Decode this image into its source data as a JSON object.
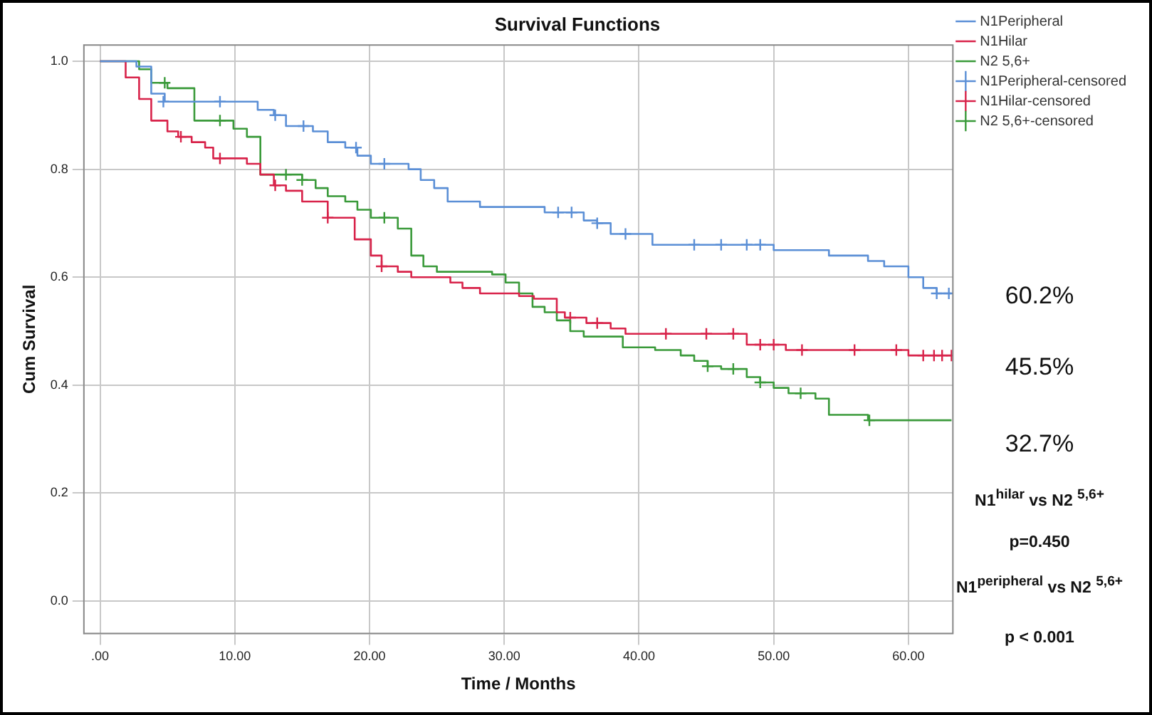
{
  "chart_data": {
    "type": "step",
    "title": "Survival Functions",
    "xlabel": "Time / Months",
    "ylabel": "Cum Survival",
    "xlim": [
      -1.2,
      63.3
    ],
    "ylim": [
      -0.06,
      1.03
    ],
    "xticks": [
      {
        "value": 0,
        "label": ".00"
      },
      {
        "value": 10,
        "label": "10.00"
      },
      {
        "value": 20,
        "label": "20.00"
      },
      {
        "value": 30,
        "label": "30.00"
      },
      {
        "value": 40,
        "label": "40.00"
      },
      {
        "value": 50,
        "label": "50.00"
      },
      {
        "value": 60,
        "label": "60.00"
      }
    ],
    "yticks": [
      {
        "value": 0,
        "label": "0.0"
      },
      {
        "value": 0.2,
        "label": "0.2"
      },
      {
        "value": 0.4,
        "label": "0.4"
      },
      {
        "value": 0.6,
        "label": "0.6"
      },
      {
        "value": 0.8,
        "label": "0.8"
      },
      {
        "value": 1,
        "label": "1.0"
      }
    ],
    "grid": true,
    "legend": "top right",
    "series": [
      {
        "name": "N1Peripheral",
        "type": "step",
        "color": "#5b8fd6",
        "x": [
          0,
          2.7,
          3.8,
          4.8,
          11.7,
          12.9,
          13.8,
          15.8,
          16.9,
          18.2,
          19.1,
          20.1,
          22.9,
          23.8,
          24.8,
          25.8,
          28.2,
          33.0,
          35.9,
          36.9,
          37.9,
          41.0,
          50.0,
          54.1,
          57.0,
          58.2,
          60.0,
          61.1,
          62.1,
          63.2
        ],
        "values": [
          1,
          0.99,
          0.94,
          0.925,
          0.91,
          0.9,
          0.88,
          0.87,
          0.85,
          0.84,
          0.825,
          0.81,
          0.8,
          0.78,
          0.765,
          0.74,
          0.73,
          0.72,
          0.705,
          0.7,
          0.68,
          0.66,
          0.65,
          0.64,
          0.63,
          0.62,
          0.6,
          0.58,
          0.57,
          0.57
        ]
      },
      {
        "name": "N1Hilar",
        "type": "step",
        "color": "#d8234a",
        "x": [
          0,
          1.9,
          2.9,
          3.8,
          5.0,
          5.8,
          6.8,
          7.8,
          8.4,
          10.9,
          11.9,
          12.9,
          13.8,
          15.0,
          16.9,
          18.9,
          20.1,
          20.9,
          22.1,
          23.1,
          26.0,
          26.9,
          28.2,
          31.1,
          32.2,
          33.9,
          34.5,
          36.1,
          37.9,
          39.0,
          48.0,
          50.9,
          60.0,
          63.2
        ],
        "values": [
          1,
          0.97,
          0.93,
          0.89,
          0.87,
          0.86,
          0.85,
          0.84,
          0.82,
          0.81,
          0.79,
          0.77,
          0.76,
          0.74,
          0.71,
          0.67,
          0.64,
          0.62,
          0.61,
          0.6,
          0.59,
          0.58,
          0.57,
          0.565,
          0.56,
          0.535,
          0.525,
          0.515,
          0.505,
          0.495,
          0.475,
          0.465,
          0.455,
          0.455
        ]
      },
      {
        "name": "N2 5,6+",
        "type": "step",
        "color": "#3a9a3a",
        "x": [
          0,
          2.9,
          3.8,
          5.0,
          7.0,
          9.9,
          10.9,
          11.9,
          15.0,
          16.0,
          16.9,
          18.2,
          19.1,
          20.1,
          22.1,
          23.1,
          24.0,
          25.0,
          29.1,
          30.1,
          31.1,
          32.1,
          33.0,
          33.9,
          34.9,
          35.9,
          38.8,
          41.2,
          43.1,
          44.1,
          45.1,
          46.1,
          48.0,
          49.0,
          50.0,
          51.1,
          53.1,
          54.1,
          57.0,
          63.2
        ],
        "values": [
          1,
          0.985,
          0.96,
          0.95,
          0.89,
          0.875,
          0.86,
          0.79,
          0.78,
          0.765,
          0.75,
          0.74,
          0.725,
          0.71,
          0.69,
          0.64,
          0.62,
          0.61,
          0.605,
          0.59,
          0.57,
          0.545,
          0.535,
          0.52,
          0.5,
          0.49,
          0.47,
          0.465,
          0.455,
          0.445,
          0.435,
          0.43,
          0.415,
          0.405,
          0.395,
          0.385,
          0.375,
          0.345,
          0.335,
          0.335
        ]
      },
      {
        "name": "N1Peripheral-censored",
        "type": "scatter",
        "marker": "cross",
        "color": "#5b8fd6",
        "x": [
          4.7,
          8.9,
          13.0,
          15.1,
          19.0,
          21.1,
          34.0,
          35.0,
          36.9,
          39.0,
          44.1,
          46.1,
          48.0,
          49.0,
          62.1,
          63.0
        ],
        "values": [
          0.925,
          0.925,
          0.9,
          0.88,
          0.84,
          0.81,
          0.72,
          0.72,
          0.7,
          0.68,
          0.66,
          0.66,
          0.66,
          0.66,
          0.57,
          0.57
        ]
      },
      {
        "name": "N1Hilar-censored",
        "type": "scatter",
        "marker": "cross",
        "color": "#d8234a",
        "x": [
          6.0,
          8.9,
          13.0,
          16.9,
          20.9,
          34.9,
          36.9,
          42.0,
          45.0,
          47.0,
          49.0,
          50.0,
          52.1,
          56.0,
          59.1,
          61.1,
          61.9,
          62.5,
          63.2
        ],
        "values": [
          0.86,
          0.82,
          0.77,
          0.71,
          0.62,
          0.525,
          0.515,
          0.495,
          0.495,
          0.495,
          0.475,
          0.475,
          0.465,
          0.465,
          0.465,
          0.455,
          0.455,
          0.455,
          0.455
        ]
      },
      {
        "name": "N2 5,6+-censored",
        "type": "scatter",
        "marker": "cross",
        "color": "#3a9a3a",
        "x": [
          4.8,
          8.9,
          13.8,
          15.0,
          21.1,
          45.1,
          47.0,
          49.0,
          52.0,
          57.1
        ],
        "values": [
          0.96,
          0.89,
          0.79,
          0.78,
          0.71,
          0.435,
          0.43,
          0.405,
          0.385,
          0.335
        ]
      }
    ],
    "annotations": [
      "60.2%",
      "45.5%",
      "32.7%",
      "N1$^{hilar}$ vs N2 $^{5,6+}$",
      "p=0.450",
      "N1$^{peripheral}$ vs N2 $^{5,6+}$",
      "p < 0.001"
    ]
  }
}
